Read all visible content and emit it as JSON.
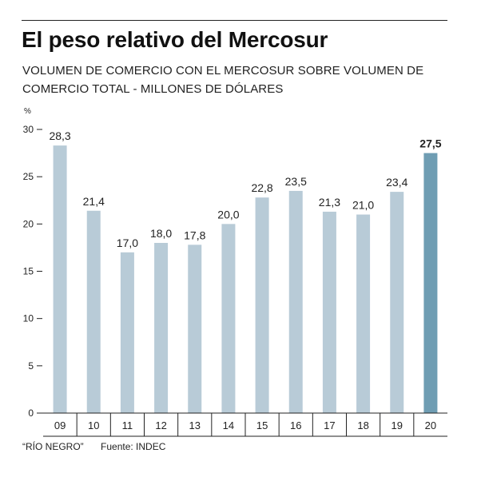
{
  "header": {
    "title": "El peso relativo del Mercosur",
    "subtitle": "VOLUMEN DE COMERCIO CON EL MERCOSUR SOBRE VOLUMEN DE COMERCIO TOTAL - MILLONES DE DÓLARES"
  },
  "footer": {
    "credit": "“RÍO NEGRO”",
    "source": "Fuente: INDEC"
  },
  "chart_data": {
    "type": "bar",
    "ylabel": "%",
    "ylim": [
      0,
      30
    ],
    "yticks": [
      0,
      5,
      10,
      15,
      20,
      25,
      30
    ],
    "grid": false,
    "categories": [
      "09",
      "10",
      "11",
      "12",
      "13",
      "14",
      "15",
      "16",
      "17",
      "18",
      "19",
      "20"
    ],
    "values": [
      28.3,
      21.4,
      17.0,
      18.0,
      17.8,
      20.0,
      22.8,
      23.5,
      21.3,
      21.0,
      23.4,
      27.5
    ],
    "value_labels": [
      "28,3",
      "21,4",
      "17,0",
      "18,0",
      "17,8",
      "20,0",
      "22,8",
      "23,5",
      "21,3",
      "21,0",
      "23,4",
      "27,5"
    ],
    "highlight_index": 11,
    "colors": {
      "bar": "#b8cbd7",
      "highlight": "#6f9db3",
      "axis": "#222222"
    }
  }
}
